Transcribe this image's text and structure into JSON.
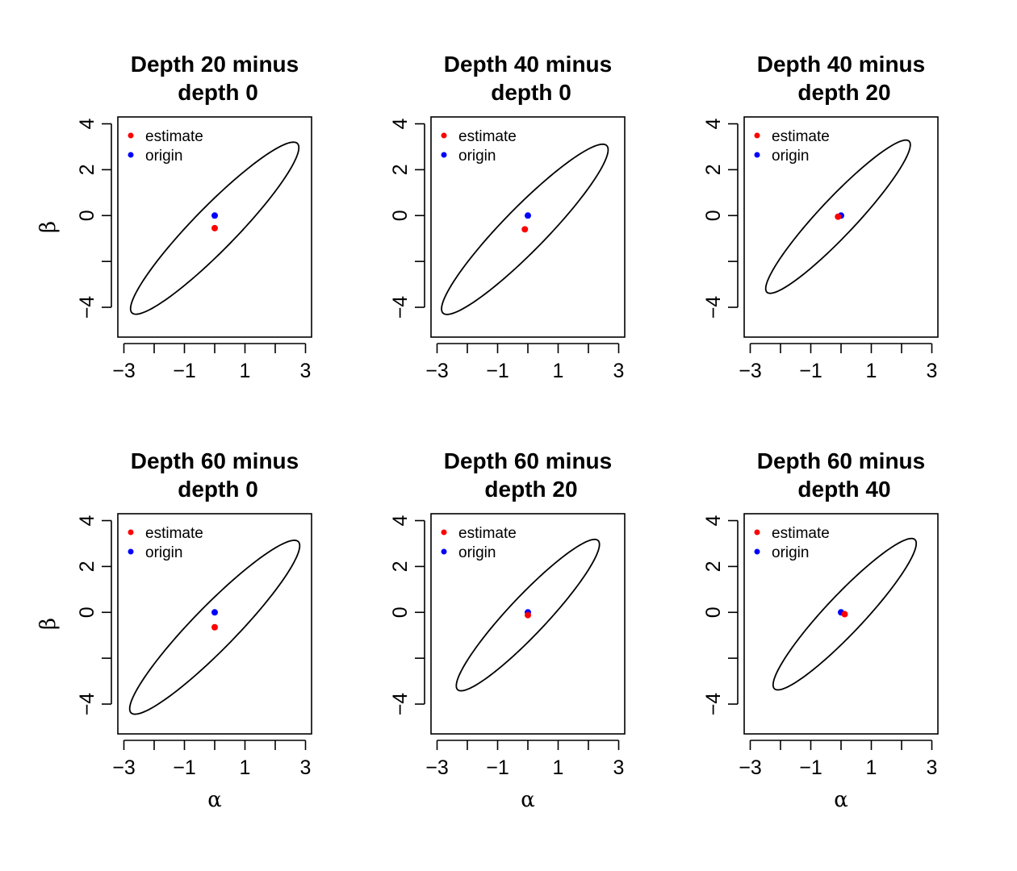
{
  "chart_data": [
    {
      "type": "scatter",
      "title": [
        "Depth 20 minus",
        "depth 0"
      ],
      "xlabel": "",
      "ylabel": "β",
      "xlim": [
        -3.2,
        3.2
      ],
      "ylim": [
        -5.3,
        4.3
      ],
      "xticks": [
        -3,
        -2,
        -1,
        0,
        1,
        2,
        3
      ],
      "xtick_labels": [
        "−3",
        "",
        "−1",
        "",
        "1",
        "",
        "3"
      ],
      "yticks": [
        -4,
        -2,
        0,
        2,
        4
      ],
      "ytick_labels": [
        "−4",
        "",
        "0",
        "2",
        "4"
      ],
      "legend": {
        "position": "top-left",
        "entries": [
          {
            "label": "estimate",
            "color": "#ff0000"
          },
          {
            "label": "origin",
            "color": "#0000ff"
          }
        ]
      },
      "points": [
        {
          "name": "estimate",
          "x": 0.0,
          "y": -0.55,
          "color": "#ff0000"
        },
        {
          "name": "origin",
          "x": 0.0,
          "y": 0.0,
          "color": "#0000ff"
        }
      ],
      "ellipse": {
        "cx": 0.0,
        "cy": -0.55,
        "a": 4.6,
        "b": 0.8,
        "angle_deg": 54
      }
    },
    {
      "type": "scatter",
      "title": [
        "Depth 40 minus",
        "depth 0"
      ],
      "xlabel": "",
      "ylabel": "",
      "xlim": [
        -3.2,
        3.2
      ],
      "ylim": [
        -5.3,
        4.3
      ],
      "xticks": [
        -3,
        -2,
        -1,
        0,
        1,
        2,
        3
      ],
      "xtick_labels": [
        "−3",
        "",
        "−1",
        "",
        "1",
        "",
        "3"
      ],
      "yticks": [
        -4,
        -2,
        0,
        2,
        4
      ],
      "ytick_labels": [
        "−4",
        "",
        "0",
        "2",
        "4"
      ],
      "legend": {
        "position": "top-left",
        "entries": [
          {
            "label": "estimate",
            "color": "#ff0000"
          },
          {
            "label": "origin",
            "color": "#0000ff"
          }
        ]
      },
      "points": [
        {
          "name": "estimate",
          "x": -0.1,
          "y": -0.6,
          "color": "#ff0000"
        },
        {
          "name": "origin",
          "x": 0.0,
          "y": 0.0,
          "color": "#0000ff"
        }
      ],
      "ellipse": {
        "cx": -0.1,
        "cy": -0.6,
        "a": 4.55,
        "b": 0.8,
        "angle_deg": 54
      }
    },
    {
      "type": "scatter",
      "title": [
        "Depth 40 minus",
        "depth 20"
      ],
      "xlabel": "",
      "ylabel": "",
      "xlim": [
        -3.2,
        3.2
      ],
      "ylim": [
        -5.3,
        4.3
      ],
      "xticks": [
        -3,
        -2,
        -1,
        0,
        1,
        2,
        3
      ],
      "xtick_labels": [
        "−3",
        "",
        "−1",
        "",
        "1",
        "",
        "3"
      ],
      "yticks": [
        -4,
        -2,
        0,
        2,
        4
      ],
      "ytick_labels": [
        "−4",
        "",
        "0",
        "2",
        "4"
      ],
      "legend": {
        "position": "top-left",
        "entries": [
          {
            "label": "estimate",
            "color": "#ff0000"
          },
          {
            "label": "origin",
            "color": "#0000ff"
          }
        ]
      },
      "points": [
        {
          "name": "estimate",
          "x": -0.1,
          "y": -0.05,
          "color": "#ff0000"
        },
        {
          "name": "origin",
          "x": 0.0,
          "y": 0.0,
          "color": "#0000ff"
        }
      ],
      "ellipse": {
        "cx": -0.1,
        "cy": -0.05,
        "a": 4.05,
        "b": 0.68,
        "angle_deg": 55
      }
    },
    {
      "type": "scatter",
      "title": [
        "Depth 60 minus",
        "depth 0"
      ],
      "xlabel": "α",
      "ylabel": "β",
      "xlim": [
        -3.2,
        3.2
      ],
      "ylim": [
        -5.3,
        4.3
      ],
      "xticks": [
        -3,
        -2,
        -1,
        0,
        1,
        2,
        3
      ],
      "xtick_labels": [
        "−3",
        "",
        "−1",
        "",
        "1",
        "",
        "3"
      ],
      "yticks": [
        -4,
        -2,
        0,
        2,
        4
      ],
      "ytick_labels": [
        "−4",
        "",
        "0",
        "2",
        "4"
      ],
      "legend": {
        "position": "top-left",
        "entries": [
          {
            "label": "estimate",
            "color": "#ff0000"
          },
          {
            "label": "origin",
            "color": "#0000ff"
          }
        ]
      },
      "points": [
        {
          "name": "estimate",
          "x": 0.0,
          "y": -0.65,
          "color": "#ff0000"
        },
        {
          "name": "origin",
          "x": 0.0,
          "y": 0.0,
          "color": "#0000ff"
        }
      ],
      "ellipse": {
        "cx": 0.0,
        "cy": -0.65,
        "a": 4.65,
        "b": 0.8,
        "angle_deg": 54
      }
    },
    {
      "type": "scatter",
      "title": [
        "Depth 60 minus",
        "depth 20"
      ],
      "xlabel": "α",
      "ylabel": "",
      "xlim": [
        -3.2,
        3.2
      ],
      "ylim": [
        -5.3,
        4.3
      ],
      "xticks": [
        -3,
        -2,
        -1,
        0,
        1,
        2,
        3
      ],
      "xtick_labels": [
        "−3",
        "",
        "−1",
        "",
        "1",
        "",
        "3"
      ],
      "yticks": [
        -4,
        -2,
        0,
        2,
        4
      ],
      "ytick_labels": [
        "−4",
        "",
        "0",
        "2",
        "4"
      ],
      "legend": {
        "position": "top-left",
        "entries": [
          {
            "label": "estimate",
            "color": "#ff0000"
          },
          {
            "label": "origin",
            "color": "#0000ff"
          }
        ]
      },
      "points": [
        {
          "name": "estimate",
          "x": 0.0,
          "y": -0.12,
          "color": "#ff0000"
        },
        {
          "name": "origin",
          "x": 0.0,
          "y": 0.0,
          "color": "#0000ff"
        }
      ],
      "ellipse": {
        "cx": 0.0,
        "cy": -0.12,
        "a": 4.0,
        "b": 0.7,
        "angle_deg": 55
      }
    },
    {
      "type": "scatter",
      "title": [
        "Depth 60 minus",
        "depth 40"
      ],
      "xlabel": "α",
      "ylabel": "",
      "xlim": [
        -3.2,
        3.2
      ],
      "ylim": [
        -5.3,
        4.3
      ],
      "xticks": [
        -3,
        -2,
        -1,
        0,
        1,
        2,
        3
      ],
      "xtick_labels": [
        "−3",
        "",
        "−1",
        "",
        "1",
        "",
        "3"
      ],
      "yticks": [
        -4,
        -2,
        0,
        2,
        4
      ],
      "ytick_labels": [
        "−4",
        "",
        "0",
        "2",
        "4"
      ],
      "legend": {
        "position": "top-left",
        "entries": [
          {
            "label": "estimate",
            "color": "#ff0000"
          },
          {
            "label": "origin",
            "color": "#0000ff"
          }
        ]
      },
      "points": [
        {
          "name": "estimate",
          "x": 0.12,
          "y": -0.08,
          "color": "#ff0000"
        },
        {
          "name": "origin",
          "x": 0.0,
          "y": 0.0,
          "color": "#0000ff"
        }
      ],
      "ellipse": {
        "cx": 0.12,
        "cy": -0.08,
        "a": 4.0,
        "b": 0.7,
        "angle_deg": 55
      }
    }
  ]
}
